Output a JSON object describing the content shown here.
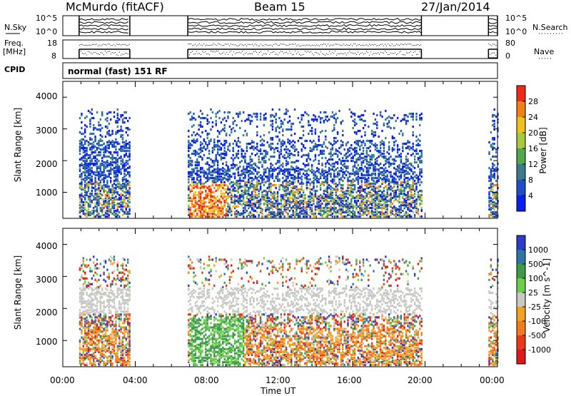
{
  "header": {
    "station": "McMurdo (fitACF)",
    "beam": "Beam 15",
    "date": "27/Jan/2014"
  },
  "top_panels": {
    "nsky_label": "N.Sky",
    "nsky_ticks": [
      "10^5",
      "10^0"
    ],
    "nsearch_label": "N.Search",
    "nsearch_ticks": [
      "10^5",
      "10^0"
    ],
    "freq_label": "Freq.",
    "freq_unit": "[MHz]",
    "freq_ticks": [
      "18",
      "8"
    ],
    "nave_label": "Nave",
    "nave_ticks": [
      "80",
      "0"
    ],
    "cpid_label": "CPID",
    "cpid_text": "normal (fast) 151 RF"
  },
  "chart_data": [
    {
      "type": "heatmap",
      "name": "power",
      "xlabel": "Time UT",
      "ylabel": "Slant Range [km]",
      "xlim": [
        0,
        24
      ],
      "ylim": [
        180,
        4500
      ],
      "yticks": [
        "1000",
        "2000",
        "3000",
        "4000"
      ],
      "xticks": [
        "00:00",
        "04:00",
        "08:00",
        "12:00",
        "16:00",
        "20:00",
        "00:00"
      ],
      "data_intervals_hours": [
        [
          0.9,
          3.7
        ],
        [
          6.9,
          19.8
        ],
        [
          23.5,
          24.0
        ]
      ],
      "colorbar": {
        "label": "Power [dB]",
        "ticks": [
          "4",
          "8",
          "12",
          "16",
          "20",
          "24",
          "28"
        ],
        "colors": [
          "#0a1ef0",
          "#1f4fc4",
          "#3a7a8a",
          "#4fa84a",
          "#a8c840",
          "#f0c020",
          "#f08018",
          "#ee2a18"
        ]
      }
    },
    {
      "type": "heatmap",
      "name": "velocity",
      "xlabel": "Time UT",
      "ylabel": "Slant Range [km]",
      "xlim": [
        0,
        24
      ],
      "ylim": [
        180,
        4500
      ],
      "yticks": [
        "1000",
        "2000",
        "3000",
        "4000"
      ],
      "xticks": [
        "00:00",
        "04:00",
        "08:00",
        "12:00",
        "16:00",
        "20:00",
        "00:00"
      ],
      "data_intervals_hours": [
        [
          0.9,
          3.7
        ],
        [
          6.9,
          19.8
        ],
        [
          23.5,
          24.0
        ]
      ],
      "colorbar": {
        "label": "Velocity [m s^-1]",
        "ticks": [
          "1000",
          "500",
          "100",
          "25",
          "-25",
          "-100",
          "-500",
          "-1000"
        ],
        "colors": [
          "#2a3cc8",
          "#2e74a8",
          "#3c9a4a",
          "#6ccf4a",
          "#c8c8c4",
          "#f4a020",
          "#f07a20",
          "#e83a18",
          "#e01818"
        ]
      }
    }
  ]
}
